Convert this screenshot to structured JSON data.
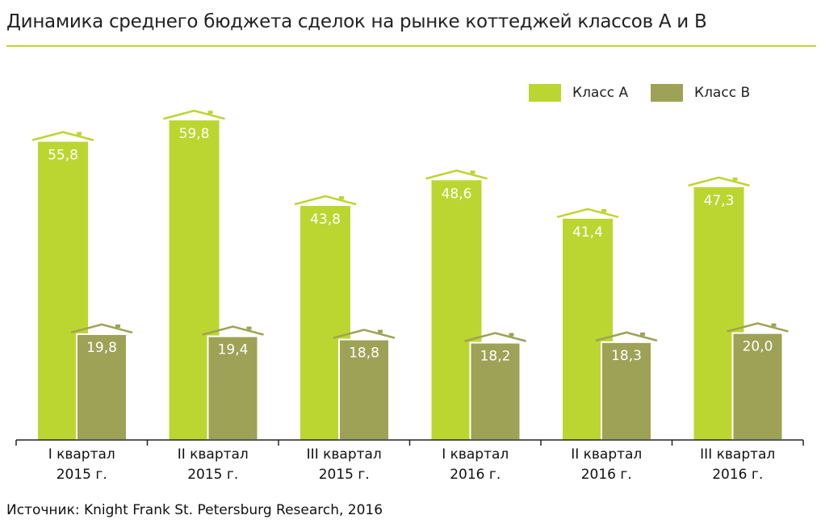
{
  "title": "Динамика среднего бюджета сделок на рынке коттеджей классов А и В",
  "source": "Источник: Knight Frank St. Petersburg Research, 2016",
  "colors": {
    "a": "#bcd631",
    "b": "#9ea257"
  },
  "chart_data": {
    "type": "bar",
    "title": "Динамика среднего бюджета сделок на рынке коттеджей классов А и В",
    "categories": [
      [
        "I квартал",
        "2015 г."
      ],
      [
        "II квартал",
        "2015 г."
      ],
      [
        "III квартал",
        "2015 г."
      ],
      [
        "I квартал",
        "2016 г."
      ],
      [
        "II квартал",
        "2016 г."
      ],
      [
        "III квартал",
        "2016 г."
      ]
    ],
    "series": [
      {
        "name": "Класс А",
        "values": [
          55.8,
          59.8,
          43.8,
          48.6,
          41.4,
          47.3
        ],
        "labels": [
          "55,8",
          "59,8",
          "43,8",
          "48,6",
          "41,4",
          "47,3"
        ]
      },
      {
        "name": "Класс В",
        "values": [
          19.8,
          19.4,
          18.8,
          18.2,
          18.3,
          20.0
        ],
        "labels": [
          "19,8",
          "19,4",
          "18,8",
          "18,2",
          "18,3",
          "20,0"
        ]
      }
    ],
    "ylim": [
      0,
      62
    ],
    "legend": "top-right",
    "grid": false
  }
}
